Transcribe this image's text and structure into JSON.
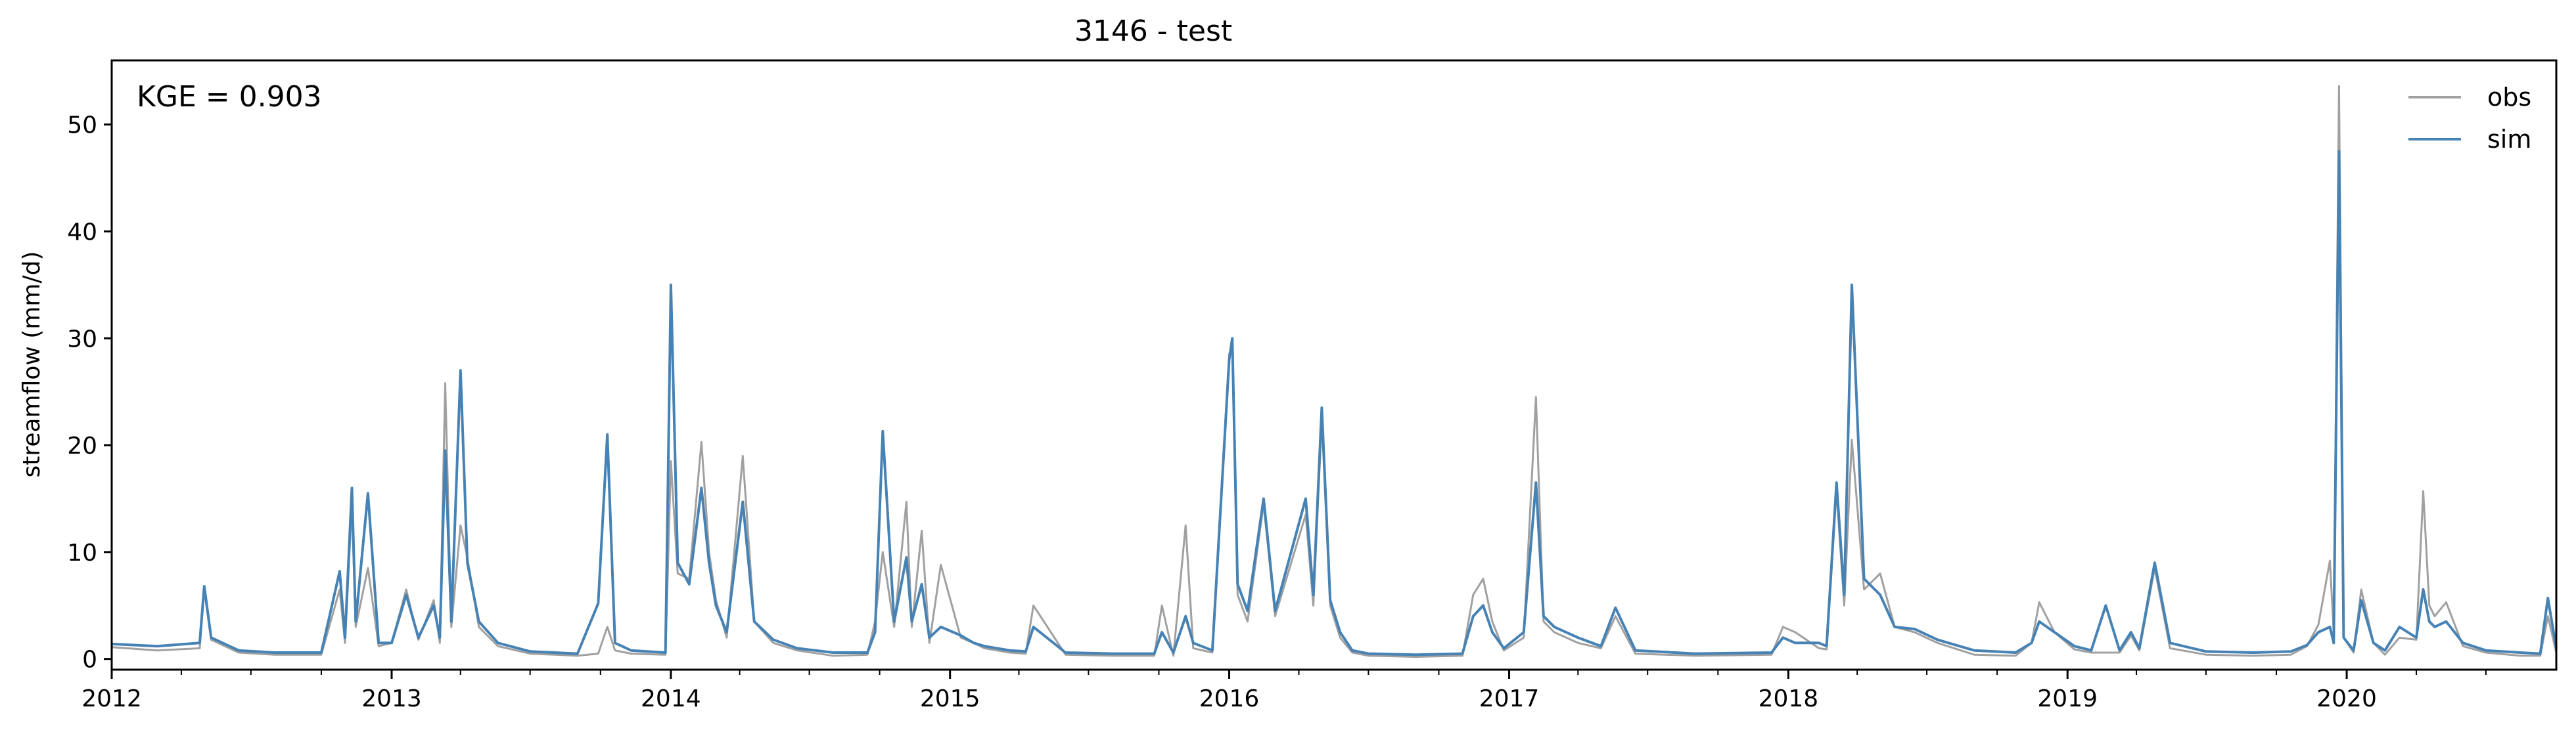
{
  "chart_data": {
    "type": "line",
    "title": "3146 - test",
    "xlabel": "",
    "ylabel": "streamflow (mm/d)",
    "annotation": "KGE = 0.903",
    "xlim": [
      "2012-01-01",
      "2020-10-01"
    ],
    "ylim": [
      -1.0,
      56.0
    ],
    "x_ticks": [
      "2012",
      "2013",
      "2014",
      "2015",
      "2016",
      "2017",
      "2018",
      "2019",
      "2020"
    ],
    "y_ticks": [
      "0",
      "10",
      "20",
      "30",
      "40",
      "50"
    ],
    "grid": false,
    "legend": {
      "placement": "top-right",
      "entries": [
        "obs",
        "sim"
      ]
    },
    "colors": {
      "obs": "#a0a0a0",
      "sim": "#4682b4"
    },
    "series": [
      {
        "name": "obs",
        "x": [
          "2012-01-01",
          "2012-03-01",
          "2012-04-25",
          "2012-05-01",
          "2012-05-10",
          "2012-06-15",
          "2012-08-01",
          "2012-10-01",
          "2012-10-25",
          "2012-11-01",
          "2012-11-10",
          "2012-11-15",
          "2012-12-01",
          "2012-12-15",
          "2013-01-01",
          "2013-01-20",
          "2013-02-05",
          "2013-02-25",
          "2013-03-05",
          "2013-03-12",
          "2013-03-20",
          "2013-04-01",
          "2013-04-10",
          "2013-04-25",
          "2013-05-20",
          "2013-07-01",
          "2013-09-01",
          "2013-09-28",
          "2013-10-10",
          "2013-10-20",
          "2013-11-10",
          "2013-12-25",
          "2014-01-01",
          "2014-01-10",
          "2014-01-25",
          "2014-02-10",
          "2014-02-20",
          "2014-03-01",
          "2014-03-15",
          "2014-04-05",
          "2014-04-20",
          "2014-05-15",
          "2014-06-15",
          "2014-08-01",
          "2014-09-15",
          "2014-09-25",
          "2014-10-05",
          "2014-10-20",
          "2014-11-05",
          "2014-11-12",
          "2014-11-25",
          "2014-12-05",
          "2014-12-20",
          "2015-01-15",
          "2015-02-01",
          "2015-02-15",
          "2015-03-20",
          "2015-04-10",
          "2015-04-20",
          "2015-06-01",
          "2015-08-01",
          "2015-09-25",
          "2015-10-05",
          "2015-10-20",
          "2015-11-05",
          "2015-11-15",
          "2015-12-10",
          "2016-01-01",
          "2016-01-05",
          "2016-01-12",
          "2016-01-25",
          "2016-02-15",
          "2016-03-01",
          "2016-04-10",
          "2016-04-20",
          "2016-05-01",
          "2016-05-12",
          "2016-05-25",
          "2016-06-10",
          "2016-07-01",
          "2016-09-01",
          "2016-11-01",
          "2016-11-15",
          "2016-11-28",
          "2016-12-10",
          "2016-12-25",
          "2017-01-20",
          "2017-02-05",
          "2017-02-15",
          "2017-03-01",
          "2017-04-01",
          "2017-05-01",
          "2017-05-20",
          "2017-06-15",
          "2017-09-01",
          "2017-12-10",
          "2017-12-25",
          "2018-01-10",
          "2018-02-10",
          "2018-02-20",
          "2018-03-05",
          "2018-03-15",
          "2018-03-25",
          "2018-04-10",
          "2018-05-01",
          "2018-05-20",
          "2018-06-15",
          "2018-07-15",
          "2018-09-01",
          "2018-10-25",
          "2018-11-15",
          "2018-11-25",
          "2018-12-15",
          "2019-01-10",
          "2019-02-01",
          "2019-02-20",
          "2019-03-10",
          "2019-03-25",
          "2019-04-05",
          "2019-04-25",
          "2019-05-15",
          "2019-07-01",
          "2019-09-01",
          "2019-10-20",
          "2019-11-10",
          "2019-11-25",
          "2019-12-10",
          "2019-12-15",
          "2019-12-22",
          "2019-12-28",
          "2020-01-10",
          "2020-01-20",
          "2020-02-05",
          "2020-02-20",
          "2020-03-10",
          "2020-04-01",
          "2020-04-10",
          "2020-04-18",
          "2020-04-25",
          "2020-05-10",
          "2020-06-01",
          "2020-07-01",
          "2020-08-15",
          "2020-09-10",
          "2020-09-20",
          "2020-10-01"
        ],
        "y": [
          1.1,
          0.8,
          1.0,
          6.5,
          1.8,
          0.6,
          0.4,
          0.4,
          6.5,
          1.5,
          14.5,
          3.0,
          8.5,
          1.2,
          1.5,
          6.5,
          1.8,
          5.5,
          1.5,
          25.8,
          3.0,
          12.5,
          9.5,
          3.0,
          1.2,
          0.5,
          0.3,
          0.5,
          3.0,
          0.8,
          0.5,
          0.4,
          18.5,
          8.0,
          7.5,
          20.3,
          10.0,
          5.5,
          2.0,
          19.0,
          3.5,
          1.5,
          0.8,
          0.3,
          0.4,
          3.5,
          10.0,
          3.0,
          14.7,
          3.0,
          12.0,
          1.5,
          8.8,
          2.0,
          1.5,
          1.0,
          0.6,
          0.5,
          5.0,
          0.4,
          0.3,
          0.3,
          5.0,
          0.3,
          12.5,
          1.0,
          0.6,
          28.5,
          29.5,
          6.0,
          3.5,
          14.5,
          4.0,
          13.5,
          5.0,
          22.5,
          5.0,
          2.0,
          0.6,
          0.3,
          0.2,
          0.3,
          6.0,
          7.5,
          3.5,
          0.8,
          2.0,
          24.5,
          3.5,
          2.5,
          1.5,
          1.0,
          4.0,
          0.5,
          0.3,
          0.4,
          3.0,
          2.5,
          1.0,
          0.9,
          15.8,
          5.0,
          20.5,
          6.5,
          8.0,
          3.0,
          2.5,
          1.5,
          0.4,
          0.3,
          1.5,
          5.3,
          2.5,
          0.9,
          0.6,
          0.6,
          0.6,
          2.2,
          0.8,
          8.5,
          1.0,
          0.4,
          0.3,
          0.4,
          1.2,
          3.2,
          9.2,
          2.5,
          53.6,
          2.0,
          0.6,
          6.5,
          1.5,
          0.4,
          2.0,
          1.8,
          15.7,
          5.0,
          4.0,
          5.3,
          1.2,
          0.6,
          0.3,
          0.3,
          4.0,
          0.6
        ]
      },
      {
        "name": "sim",
        "x": [
          "2012-01-01",
          "2012-03-01",
          "2012-04-25",
          "2012-05-01",
          "2012-05-10",
          "2012-06-15",
          "2012-08-01",
          "2012-10-01",
          "2012-10-25",
          "2012-11-01",
          "2012-11-10",
          "2012-11-15",
          "2012-12-01",
          "2012-12-15",
          "2013-01-01",
          "2013-01-20",
          "2013-02-05",
          "2013-02-25",
          "2013-03-05",
          "2013-03-12",
          "2013-03-20",
          "2013-04-01",
          "2013-04-10",
          "2013-04-25",
          "2013-05-20",
          "2013-07-01",
          "2013-09-01",
          "2013-09-28",
          "2013-10-10",
          "2013-10-20",
          "2013-11-10",
          "2013-12-25",
          "2014-01-01",
          "2014-01-10",
          "2014-01-25",
          "2014-02-10",
          "2014-02-20",
          "2014-03-01",
          "2014-03-15",
          "2014-04-05",
          "2014-04-20",
          "2014-05-15",
          "2014-06-15",
          "2014-08-01",
          "2014-09-15",
          "2014-09-25",
          "2014-10-05",
          "2014-10-20",
          "2014-11-05",
          "2014-11-12",
          "2014-11-25",
          "2014-12-05",
          "2014-12-20",
          "2015-01-15",
          "2015-02-01",
          "2015-02-15",
          "2015-03-20",
          "2015-04-10",
          "2015-04-20",
          "2015-06-01",
          "2015-08-01",
          "2015-09-25",
          "2015-10-05",
          "2015-10-20",
          "2015-11-05",
          "2015-11-15",
          "2015-12-10",
          "2016-01-01",
          "2016-01-05",
          "2016-01-12",
          "2016-01-25",
          "2016-02-15",
          "2016-03-01",
          "2016-04-10",
          "2016-04-20",
          "2016-05-01",
          "2016-05-12",
          "2016-05-25",
          "2016-06-10",
          "2016-07-01",
          "2016-09-01",
          "2016-11-01",
          "2016-11-15",
          "2016-11-28",
          "2016-12-10",
          "2016-12-25",
          "2017-01-20",
          "2017-02-05",
          "2017-02-15",
          "2017-03-01",
          "2017-04-01",
          "2017-05-01",
          "2017-05-20",
          "2017-06-15",
          "2017-09-01",
          "2017-12-10",
          "2017-12-25",
          "2018-01-10",
          "2018-02-10",
          "2018-02-20",
          "2018-03-05",
          "2018-03-15",
          "2018-03-25",
          "2018-04-10",
          "2018-05-01",
          "2018-05-20",
          "2018-06-15",
          "2018-07-15",
          "2018-09-01",
          "2018-10-25",
          "2018-11-15",
          "2018-11-25",
          "2018-12-15",
          "2019-01-10",
          "2019-02-01",
          "2019-02-20",
          "2019-03-10",
          "2019-03-25",
          "2019-04-05",
          "2019-04-25",
          "2019-05-15",
          "2019-07-01",
          "2019-09-01",
          "2019-10-20",
          "2019-11-10",
          "2019-11-25",
          "2019-12-10",
          "2019-12-15",
          "2019-12-22",
          "2019-12-28",
          "2020-01-10",
          "2020-01-20",
          "2020-02-05",
          "2020-02-20",
          "2020-03-10",
          "2020-04-01",
          "2020-04-10",
          "2020-04-18",
          "2020-04-25",
          "2020-05-10",
          "2020-06-01",
          "2020-07-01",
          "2020-08-15",
          "2020-09-10",
          "2020-09-20",
          "2020-10-01"
        ],
        "y": [
          1.4,
          1.2,
          1.5,
          6.8,
          2.0,
          0.8,
          0.6,
          0.6,
          8.2,
          2.0,
          16.0,
          3.5,
          15.5,
          1.5,
          1.5,
          6.0,
          2.0,
          5.0,
          2.0,
          19.5,
          3.5,
          27.0,
          9.0,
          3.5,
          1.5,
          0.7,
          0.5,
          5.2,
          21.0,
          1.5,
          0.8,
          0.6,
          35.0,
          9.0,
          7.0,
          16.0,
          9.0,
          5.0,
          2.5,
          14.7,
          3.5,
          1.8,
          1.0,
          0.6,
          0.6,
          2.5,
          21.3,
          3.5,
          9.5,
          3.5,
          7.0,
          2.0,
          3.0,
          2.2,
          1.5,
          1.2,
          0.8,
          0.7,
          3.0,
          0.6,
          0.5,
          0.5,
          2.5,
          0.6,
          4.0,
          1.5,
          0.8,
          28.0,
          30.0,
          7.0,
          4.5,
          15.0,
          4.5,
          15.0,
          6.0,
          23.5,
          5.5,
          2.5,
          0.8,
          0.5,
          0.4,
          0.5,
          4.0,
          5.0,
          2.5,
          1.0,
          2.5,
          16.5,
          4.0,
          3.0,
          2.0,
          1.2,
          4.8,
          0.8,
          0.5,
          0.6,
          2.0,
          1.5,
          1.5,
          1.2,
          16.5,
          6.0,
          35.0,
          7.5,
          6.0,
          3.0,
          2.8,
          1.8,
          0.8,
          0.6,
          1.5,
          3.5,
          2.5,
          1.2,
          0.8,
          5.0,
          0.8,
          2.5,
          1.0,
          9.0,
          1.5,
          0.7,
          0.6,
          0.7,
          1.3,
          2.5,
          3.0,
          1.5,
          47.5,
          2.0,
          0.8,
          5.5,
          1.5,
          0.8,
          3.0,
          2.0,
          6.5,
          3.5,
          3.0,
          3.5,
          1.5,
          0.8,
          0.6,
          0.5,
          5.7,
          1.0
        ]
      }
    ]
  }
}
